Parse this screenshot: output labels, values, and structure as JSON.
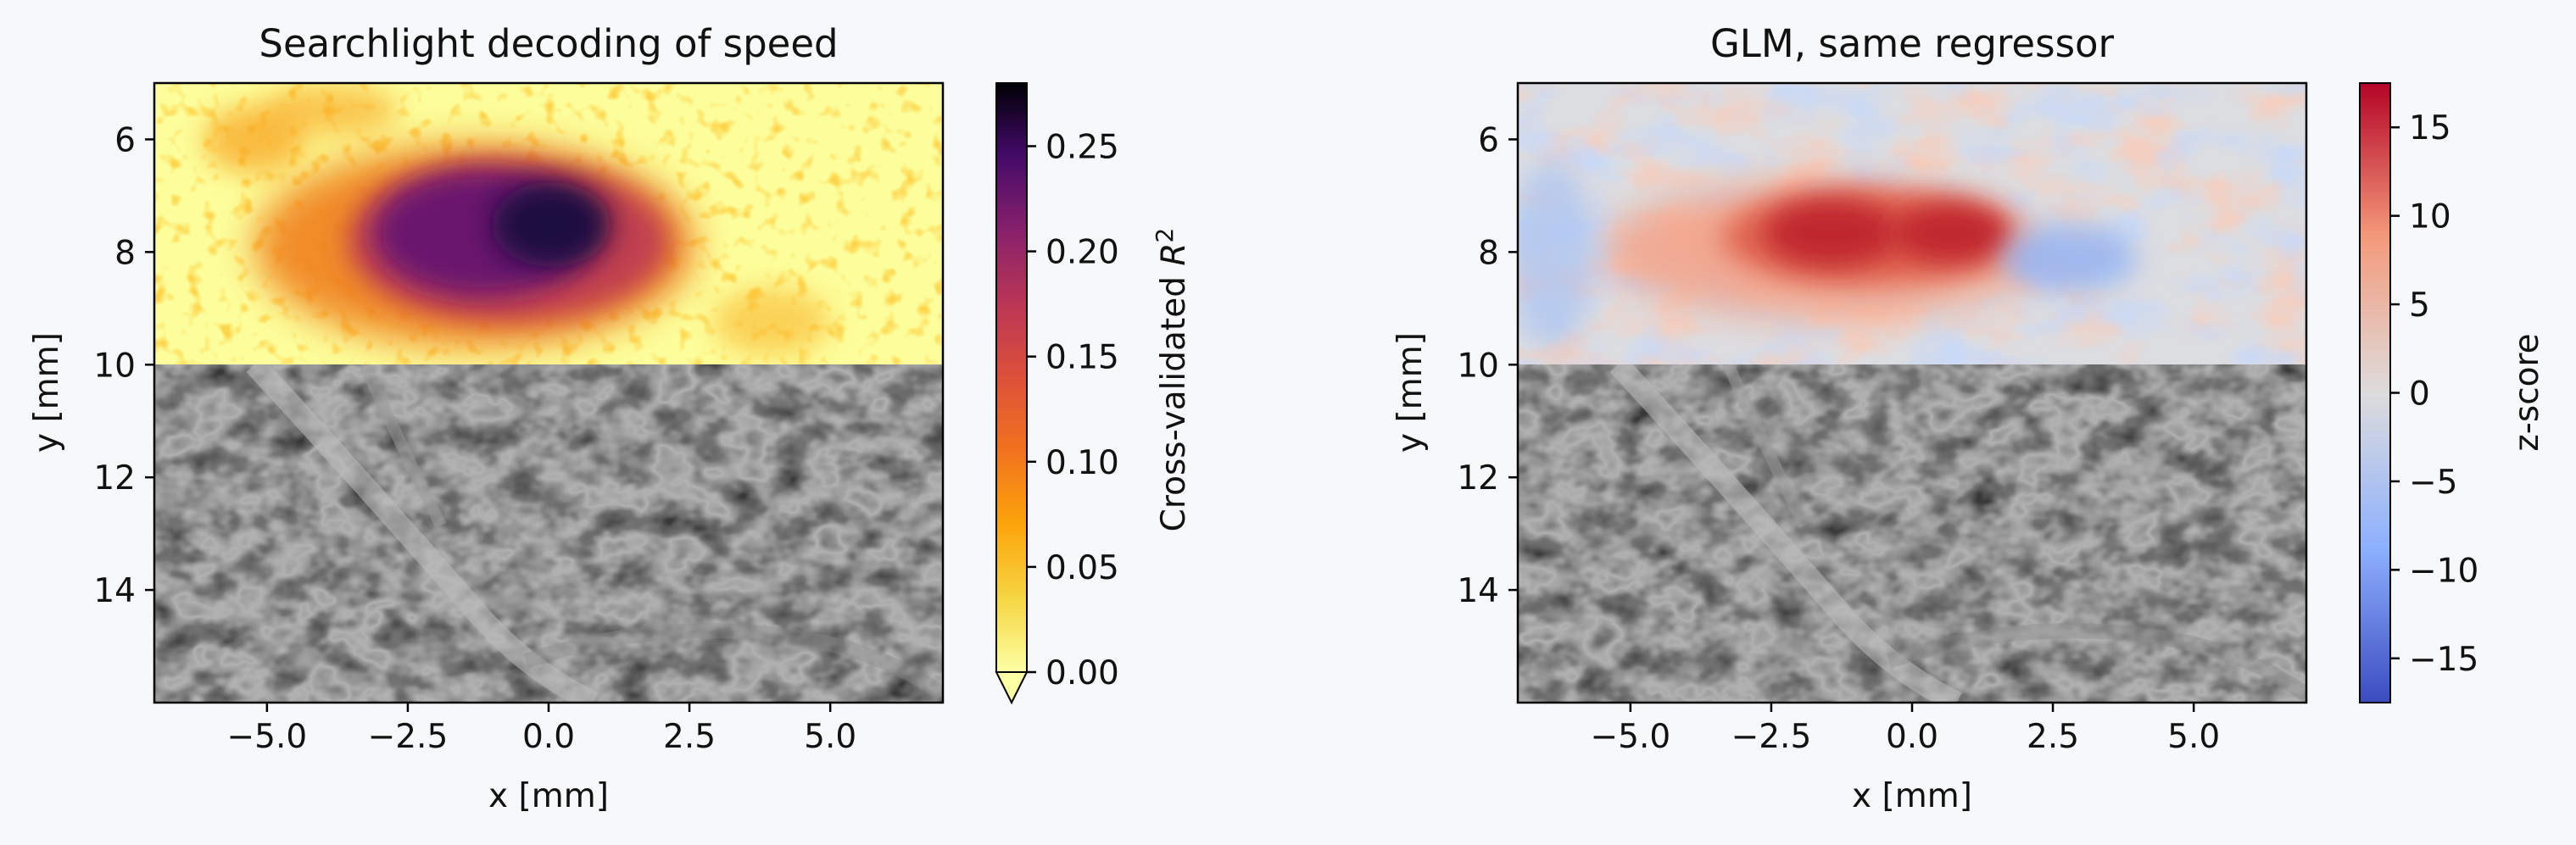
{
  "chart_data": [
    {
      "type": "heatmap",
      "title": "Searchlight decoding of speed",
      "xlabel": "x [mm]",
      "ylabel": "y [mm]",
      "xlim": [
        -7.0,
        7.0
      ],
      "ylim": [
        16.0,
        5.0
      ],
      "x_ticks": [
        -5.0,
        -2.5,
        0.0,
        2.5,
        5.0
      ],
      "x_tick_labels": [
        "−5.0",
        "−2.5",
        "0.0",
        "2.5",
        "5.0"
      ],
      "y_ticks": [
        6,
        8,
        10,
        12,
        14
      ],
      "y_tick_labels": [
        "6",
        "8",
        "10",
        "12",
        "14"
      ],
      "overlay_region": {
        "x": [
          -7.0,
          7.0
        ],
        "y": [
          5.0,
          10.0
        ]
      },
      "background": "grayscale vascular (power Doppler) image, y 10–16 mm",
      "colormap": "inferno_r",
      "colorbar": {
        "label": "Cross-validated R²",
        "range": [
          0.0,
          0.28
        ],
        "ticks": [
          0.0,
          0.05,
          0.1,
          0.15,
          0.2,
          0.25
        ],
        "tick_labels": [
          "0.00",
          "0.05",
          "0.10",
          "0.15",
          "0.20",
          "0.25"
        ],
        "extend": "min"
      },
      "hotspot": {
        "x_center": -1.0,
        "y_center": 7.8,
        "peak_value": 0.27
      }
    },
    {
      "type": "heatmap",
      "title": "GLM, same regressor",
      "xlabel": "x [mm]",
      "ylabel": "y [mm]",
      "xlim": [
        -7.0,
        7.0
      ],
      "ylim": [
        16.0,
        5.0
      ],
      "x_ticks": [
        -5.0,
        -2.5,
        0.0,
        2.5,
        5.0
      ],
      "x_tick_labels": [
        "−5.0",
        "−2.5",
        "0.0",
        "2.5",
        "5.0"
      ],
      "y_ticks": [
        6,
        8,
        10,
        12,
        14
      ],
      "y_tick_labels": [
        "6",
        "8",
        "10",
        "12",
        "14"
      ],
      "overlay_region": {
        "x": [
          -7.0,
          7.0
        ],
        "y": [
          5.0,
          10.0
        ]
      },
      "background": "grayscale vascular (power Doppler) image, y 10–16 mm",
      "colormap": "coolwarm",
      "colorbar": {
        "label": "z-score",
        "range": [
          -17.5,
          17.5
        ],
        "ticks": [
          -15,
          -10,
          -5,
          0,
          5,
          10,
          15
        ],
        "tick_labels": [
          "−15",
          "−10",
          "−5",
          "0",
          "5",
          "10",
          "15"
        ]
      },
      "hotspot": {
        "x_center": -1.2,
        "y_center": 7.8,
        "peak_value": 16
      }
    }
  ],
  "colors": {
    "background": "#f6f8fa",
    "axis": "#000000"
  }
}
